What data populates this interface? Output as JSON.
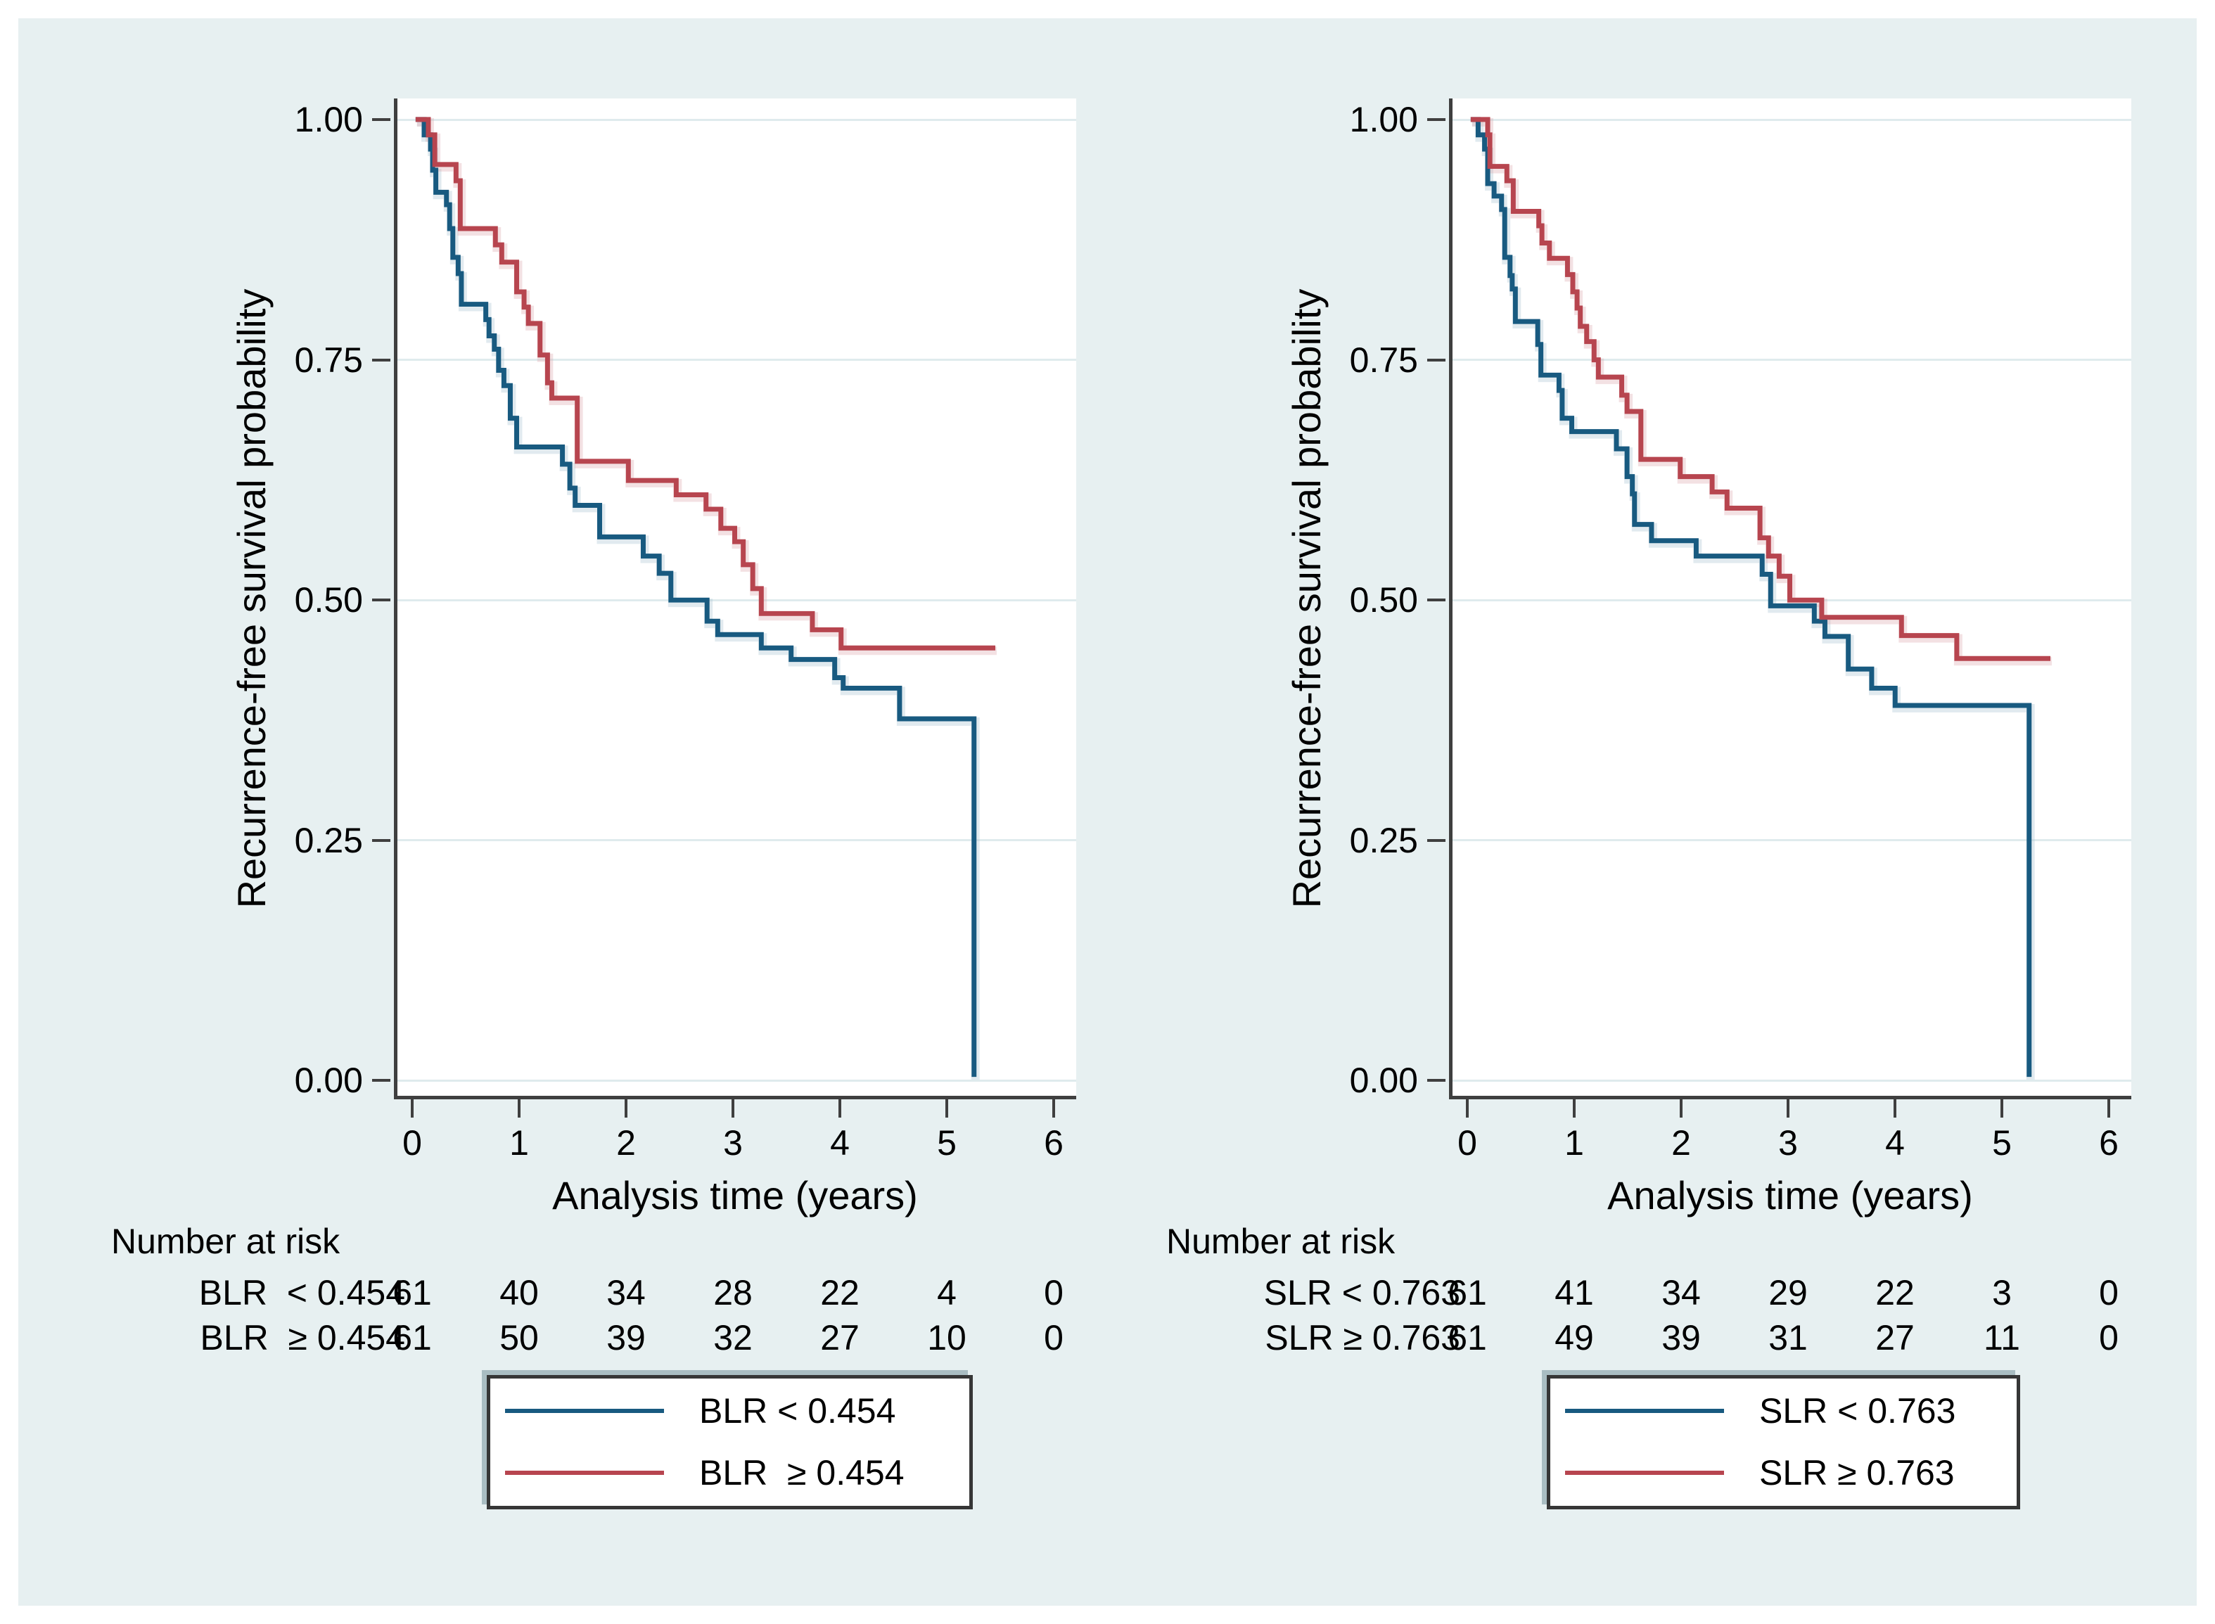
{
  "figure": {
    "background": "#e7f0f1",
    "plot_background": "#ffffff",
    "axis_color": "#3f3f3f",
    "grid_color": "#dfebed",
    "blue": "#185a80",
    "red": "#b7454f",
    "blue_halo": "#a9c2d1",
    "red_halo": "#dcaab0"
  },
  "chart_data": [
    {
      "type": "line",
      "subtype": "kaplan-meier-step",
      "title": "",
      "xlabel": "Analysis time (years)",
      "ylabel": "Recurrence-free survival probability",
      "xlim": [
        0,
        6.35
      ],
      "ylim": [
        0,
        1
      ],
      "grid": "horizontal",
      "legend_position": "bottom",
      "x_tick_values": [
        0,
        1,
        2,
        3,
        4,
        5,
        6
      ],
      "x_tick_labels": [
        "0",
        "1",
        "2",
        "3",
        "4",
        "5",
        "6"
      ],
      "y_tick_values": [
        1.0,
        0.75,
        0.5,
        0.25,
        0.0
      ],
      "y_tick_labels": [
        "1.00",
        "0.75",
        "0.50",
        "0.25",
        "0.00"
      ],
      "series": [
        {
          "name": "BLR < 0.454",
          "color": "#185a80",
          "halo": "#a9c2d1",
          "steps": [
            [
              0,
              1.0
            ],
            [
              0.08,
              0.984
            ],
            [
              0.14,
              0.969
            ],
            [
              0.16,
              0.947
            ],
            [
              0.19,
              0.924
            ],
            [
              0.29,
              0.911
            ],
            [
              0.32,
              0.886
            ],
            [
              0.35,
              0.856
            ],
            [
              0.4,
              0.839
            ],
            [
              0.43,
              0.807
            ],
            [
              0.66,
              0.791
            ],
            [
              0.69,
              0.774
            ],
            [
              0.74,
              0.76
            ],
            [
              0.78,
              0.738
            ],
            [
              0.83,
              0.722
            ],
            [
              0.89,
              0.688
            ],
            [
              0.95,
              0.658
            ],
            [
              1.38,
              0.64
            ],
            [
              1.45,
              0.615
            ],
            [
              1.5,
              0.597
            ],
            [
              1.73,
              0.564
            ],
            [
              2.14,
              0.544
            ],
            [
              2.29,
              0.526
            ],
            [
              2.4,
              0.498
            ],
            [
              2.74,
              0.476
            ],
            [
              2.84,
              0.462
            ],
            [
              3.25,
              0.448
            ],
            [
              3.53,
              0.436
            ],
            [
              3.94,
              0.417
            ],
            [
              4.02,
              0.406
            ],
            [
              4.55,
              0.374
            ],
            [
              5.25,
              0.0
            ]
          ],
          "tail_to": null
        },
        {
          "name": "BLR ≥ 0.454",
          "color": "#b7454f",
          "halo": "#dcaab0",
          "steps": [
            [
              0,
              1.0
            ],
            [
              0.12,
              0.984
            ],
            [
              0.18,
              0.953
            ],
            [
              0.38,
              0.936
            ],
            [
              0.42,
              0.886
            ],
            [
              0.75,
              0.869
            ],
            [
              0.81,
              0.851
            ],
            [
              0.95,
              0.82
            ],
            [
              1.02,
              0.804
            ],
            [
              1.06,
              0.787
            ],
            [
              1.17,
              0.754
            ],
            [
              1.24,
              0.725
            ],
            [
              1.28,
              0.709
            ],
            [
              1.52,
              0.643
            ],
            [
              2.0,
              0.623
            ],
            [
              2.45,
              0.608
            ],
            [
              2.73,
              0.593
            ],
            [
              2.87,
              0.573
            ],
            [
              3.0,
              0.559
            ],
            [
              3.08,
              0.535
            ],
            [
              3.17,
              0.51
            ],
            [
              3.25,
              0.484
            ],
            [
              3.73,
              0.467
            ],
            [
              4.0,
              0.448
            ]
          ],
          "tail_to": 5.45
        }
      ],
      "number_at_risk": {
        "header": "Number at risk",
        "times": [
          0,
          1,
          2,
          3,
          4,
          5,
          6
        ],
        "rows": [
          {
            "label": "BLR  < 0.454",
            "counts": [
              "61",
              "40",
              "34",
              "28",
              "22",
              "4",
              "0"
            ]
          },
          {
            "label": "BLR  ≥ 0.454",
            "counts": [
              "61",
              "50",
              "39",
              "32",
              "27",
              "10",
              "0"
            ]
          }
        ]
      },
      "legend": [
        {
          "label": "BLR < 0.454",
          "color": "#185a80"
        },
        {
          "label": "BLR  ≥ 0.454",
          "color": "#b7454f"
        }
      ]
    },
    {
      "type": "line",
      "subtype": "kaplan-meier-step",
      "title": "",
      "xlabel": "Analysis time (years)",
      "ylabel": "Recurrence-free survival probability",
      "xlim": [
        0,
        6.35
      ],
      "ylim": [
        0,
        1
      ],
      "grid": "horizontal",
      "legend_position": "bottom",
      "x_tick_values": [
        0,
        1,
        2,
        3,
        4,
        5,
        6
      ],
      "x_tick_labels": [
        "0",
        "1",
        "2",
        "3",
        "4",
        "5",
        "6"
      ],
      "y_tick_values": [
        1.0,
        0.75,
        0.5,
        0.25,
        0.0
      ],
      "y_tick_labels": [
        "1.00",
        "0.75",
        "0.50",
        "0.25",
        "0.00"
      ],
      "series": [
        {
          "name": "SLR < 0.763",
          "color": "#185a80",
          "halo": "#a9c2d1",
          "steps": [
            [
              0,
              1.0
            ],
            [
              0.07,
              0.984
            ],
            [
              0.13,
              0.969
            ],
            [
              0.16,
              0.933
            ],
            [
              0.22,
              0.92
            ],
            [
              0.29,
              0.906
            ],
            [
              0.32,
              0.856
            ],
            [
              0.37,
              0.837
            ],
            [
              0.39,
              0.823
            ],
            [
              0.42,
              0.789
            ],
            [
              0.63,
              0.765
            ],
            [
              0.66,
              0.733
            ],
            [
              0.83,
              0.717
            ],
            [
              0.86,
              0.688
            ],
            [
              0.95,
              0.674
            ],
            [
              1.37,
              0.656
            ],
            [
              1.47,
              0.627
            ],
            [
              1.52,
              0.609
            ],
            [
              1.54,
              0.577
            ],
            [
              1.7,
              0.56
            ],
            [
              2.12,
              0.544
            ],
            [
              2.74,
              0.525
            ],
            [
              2.82,
              0.492
            ],
            [
              3.23,
              0.476
            ],
            [
              3.33,
              0.46
            ],
            [
              3.55,
              0.426
            ],
            [
              3.77,
              0.406
            ],
            [
              3.99,
              0.388
            ],
            [
              5.25,
              0.0
            ]
          ],
          "tail_to": null
        },
        {
          "name": "SLR ≥ 0.763",
          "color": "#b7454f",
          "halo": "#dcaab0",
          "steps": [
            [
              0,
              1.0
            ],
            [
              0.16,
              0.984
            ],
            [
              0.18,
              0.951
            ],
            [
              0.34,
              0.936
            ],
            [
              0.4,
              0.904
            ],
            [
              0.64,
              0.889
            ],
            [
              0.67,
              0.871
            ],
            [
              0.74,
              0.855
            ],
            [
              0.91,
              0.838
            ],
            [
              0.96,
              0.82
            ],
            [
              1.0,
              0.803
            ],
            [
              1.03,
              0.784
            ],
            [
              1.09,
              0.768
            ],
            [
              1.16,
              0.749
            ],
            [
              1.2,
              0.731
            ],
            [
              1.42,
              0.712
            ],
            [
              1.47,
              0.695
            ],
            [
              1.6,
              0.645
            ],
            [
              1.97,
              0.627
            ],
            [
              2.27,
              0.611
            ],
            [
              2.41,
              0.594
            ],
            [
              2.72,
              0.563
            ],
            [
              2.8,
              0.544
            ],
            [
              2.9,
              0.523
            ],
            [
              3.0,
              0.498
            ],
            [
              3.3,
              0.48
            ],
            [
              4.05,
              0.461
            ],
            [
              4.57,
              0.437
            ]
          ],
          "tail_to": 5.45
        }
      ],
      "number_at_risk": {
        "header": "Number at risk",
        "times": [
          0,
          1,
          2,
          3,
          4,
          5,
          6
        ],
        "rows": [
          {
            "label": "SLR < 0.763",
            "counts": [
              "61",
              "41",
              "34",
              "29",
              "22",
              "3",
              "0"
            ]
          },
          {
            "label": "SLR ≥ 0.763",
            "counts": [
              "61",
              "49",
              "39",
              "31",
              "27",
              "11",
              "0"
            ]
          }
        ]
      },
      "legend": [
        {
          "label": "SLR < 0.763",
          "color": "#185a80"
        },
        {
          "label": "SLR ≥ 0.763",
          "color": "#b7454f"
        }
      ]
    }
  ]
}
